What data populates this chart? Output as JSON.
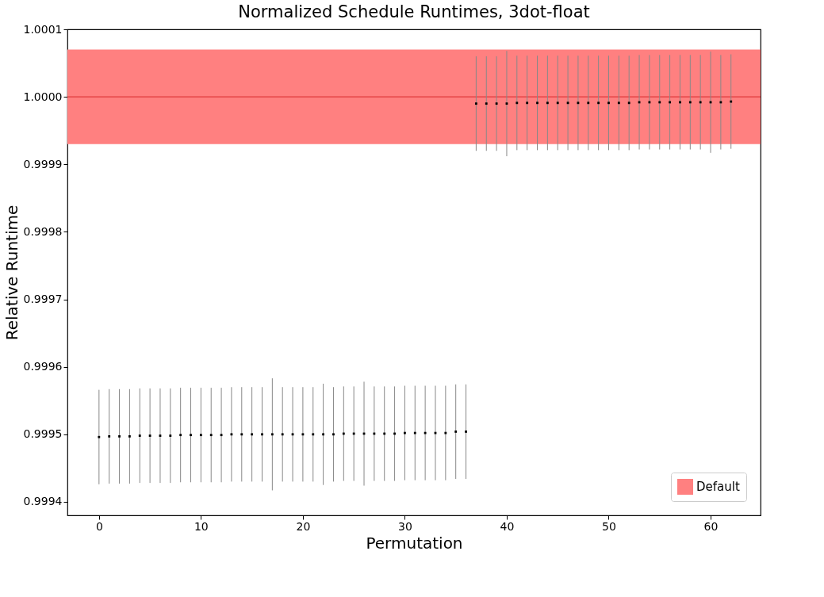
{
  "chart_data": {
    "type": "scatter",
    "title": "Normalized Schedule Runtimes, 3dot-float",
    "xlabel": "Permutation",
    "ylabel": "Relative Runtime",
    "x": [
      0,
      1,
      2,
      3,
      4,
      5,
      6,
      7,
      8,
      9,
      10,
      11,
      12,
      13,
      14,
      15,
      16,
      17,
      18,
      19,
      20,
      21,
      22,
      23,
      24,
      25,
      26,
      27,
      28,
      29,
      30,
      31,
      32,
      33,
      34,
      35,
      36,
      37,
      38,
      39,
      40,
      41,
      42,
      43,
      44,
      45,
      46,
      47,
      48,
      49,
      50,
      51,
      52,
      53,
      54,
      55,
      56,
      57,
      58,
      59,
      60,
      61,
      62
    ],
    "series": [
      {
        "color": "#000000",
        "values": [
          0.999496,
          0.999497,
          0.999497,
          0.999497,
          0.999498,
          0.999498,
          0.999498,
          0.999498,
          0.999499,
          0.999499,
          0.999499,
          0.999499,
          0.999499,
          0.9995,
          0.9995,
          0.9995,
          0.9995,
          0.9995,
          0.9995,
          0.9995,
          0.9995,
          0.9995,
          0.9995,
          0.9995,
          0.999501,
          0.999501,
          0.999501,
          0.999501,
          0.999501,
          0.999501,
          0.999502,
          0.999502,
          0.999502,
          0.999502,
          0.999502,
          0.999504,
          0.999504,
          0.99999,
          0.99999,
          0.99999,
          0.99999,
          0.999991,
          0.999991,
          0.999991,
          0.999991,
          0.999991,
          0.999991,
          0.999991,
          0.999991,
          0.999991,
          0.999991,
          0.999991,
          0.999991,
          0.999992,
          0.999992,
          0.999992,
          0.999992,
          0.999992,
          0.999992,
          0.999992,
          0.999992,
          0.999992,
          0.999993
        ],
        "errors": [
          7e-05,
          7e-05,
          7e-05,
          7e-05,
          7e-05,
          7e-05,
          7e-05,
          7e-05,
          7e-05,
          7e-05,
          7e-05,
          7e-05,
          7e-05,
          7e-05,
          7e-05,
          7e-05,
          7e-05,
          8.3e-05,
          7e-05,
          7e-05,
          7e-05,
          7e-05,
          7.5e-05,
          7e-05,
          7e-05,
          7e-05,
          7.7e-05,
          7e-05,
          7e-05,
          7e-05,
          7e-05,
          7e-05,
          7e-05,
          7e-05,
          7e-05,
          7e-05,
          7e-05,
          7e-05,
          7e-05,
          7e-05,
          7.8e-05,
          7e-05,
          7e-05,
          7e-05,
          7e-05,
          7e-05,
          7e-05,
          7e-05,
          7e-05,
          7e-05,
          7e-05,
          7e-05,
          7e-05,
          7e-05,
          7e-05,
          7e-05,
          7e-05,
          7e-05,
          7e-05,
          7e-05,
          7.5e-05,
          7e-05,
          7e-05
        ]
      }
    ],
    "marker": "square",
    "ref_lines": [
      {
        "axis": "y",
        "value": 1.0,
        "color": "#d62728"
      }
    ],
    "bands": [
      {
        "axis": "y",
        "from": 0.99993,
        "to": 1.00007,
        "label": "Default",
        "color": "#ff8080"
      }
    ],
    "xlim": [
      -3.1,
      64.9
    ],
    "xticks": [
      0,
      10,
      20,
      30,
      40,
      50,
      60
    ],
    "ylim": [
      0.99938,
      1.0001
    ],
    "yticks": [
      {
        "value": 0.9994,
        "label": "0.9994"
      },
      {
        "value": 0.9995,
        "label": "0.9995"
      },
      {
        "value": 0.9996,
        "label": "0.9996"
      },
      {
        "value": 0.9997,
        "label": "0.9997"
      },
      {
        "value": 0.9998,
        "label": "0.9998"
      },
      {
        "value": 0.9999,
        "label": "0.9999"
      },
      {
        "value": 1.0,
        "label": "1.0000"
      },
      {
        "value": 1.0001,
        "label": "1.0001"
      }
    ],
    "grid": false,
    "legend": "bottom right"
  }
}
